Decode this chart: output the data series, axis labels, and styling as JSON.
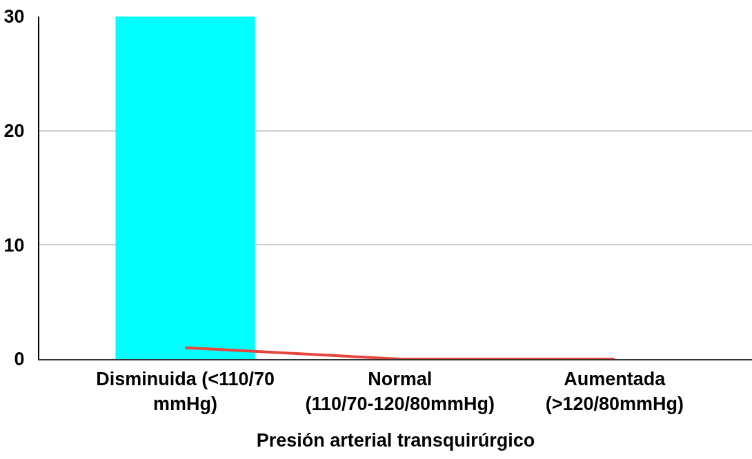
{
  "chart_data": {
    "type": "bar",
    "xlabel": "Presión arterial transquirúrgico",
    "categories": [
      "Disminuida (<110/70 mmHg)",
      "Normal (110/70-120/80mmHg)",
      "Aumentada (>120/80mmHg)"
    ],
    "series": [
      {
        "color": "#00ffff",
        "values": [
          30,
          0,
          0
        ]
      },
      {
        "type": "line",
        "color": "#e8453c",
        "values": [
          1,
          0,
          0
        ]
      }
    ],
    "ylim": [
      0,
      30
    ],
    "yticks": [
      0,
      10,
      20,
      30
    ],
    "grid": "y",
    "marker": "none",
    "line_style": "solid"
  }
}
